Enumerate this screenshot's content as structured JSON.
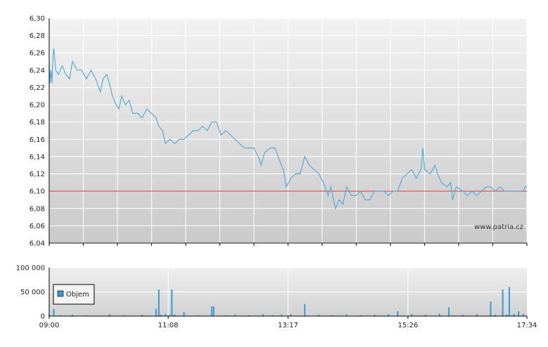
{
  "watermark": "www.patria.cz",
  "colors": {
    "price_line": "#5aaad8",
    "reference_line": "#e03030",
    "volume_bar": "#3a98d0",
    "grid": "#ffffff",
    "axis": "#000000"
  },
  "chart_data": [
    {
      "type": "line",
      "title": "",
      "xlabel": "",
      "ylabel": "",
      "y_ticks": [
        "6,04",
        "6,06",
        "6,08",
        "6,10",
        "6,12",
        "6,14",
        "6,16",
        "6,18",
        "6,20",
        "6,22",
        "6,24",
        "6,26",
        "6,28",
        "6,30"
      ],
      "ylim": [
        6.04,
        6.3
      ],
      "reference_value": 6.1,
      "xlim_minutes": [
        540,
        1054
      ],
      "grid": true,
      "series": [
        {
          "name": "",
          "points": [
            [
              "09:00",
              6.25
            ],
            [
              "09:01",
              6.225
            ],
            [
              "09:02",
              6.24
            ],
            [
              "09:03",
              6.225
            ],
            [
              "09:04",
              6.255
            ],
            [
              "09:05",
              6.265
            ],
            [
              "09:07",
              6.24
            ],
            [
              "09:10",
              6.235
            ],
            [
              "09:14",
              6.245
            ],
            [
              "09:18",
              6.235
            ],
            [
              "09:22",
              6.23
            ],
            [
              "09:25",
              6.25
            ],
            [
              "09:30",
              6.24
            ],
            [
              "09:35",
              6.24
            ],
            [
              "09:40",
              6.23
            ],
            [
              "09:45",
              6.24
            ],
            [
              "09:50",
              6.23
            ],
            [
              "09:55",
              6.215
            ],
            [
              "09:58",
              6.23
            ],
            [
              "10:02",
              6.235
            ],
            [
              "10:06",
              6.22
            ],
            [
              "10:08",
              6.21
            ],
            [
              "10:12",
              6.2
            ],
            [
              "10:15",
              6.195
            ],
            [
              "10:18",
              6.21
            ],
            [
              "10:22",
              6.2
            ],
            [
              "10:26",
              6.205
            ],
            [
              "10:30",
              6.19
            ],
            [
              "10:35",
              6.19
            ],
            [
              "10:40",
              6.185
            ],
            [
              "10:45",
              6.195
            ],
            [
              "10:50",
              6.19
            ],
            [
              "10:55",
              6.185
            ],
            [
              "10:58",
              6.175
            ],
            [
              "11:02",
              6.17
            ],
            [
              "11:05",
              6.155
            ],
            [
              "11:10",
              6.16
            ],
            [
              "11:15",
              6.155
            ],
            [
              "11:20",
              6.16
            ],
            [
              "11:25",
              6.16
            ],
            [
              "11:30",
              6.165
            ],
            [
              "11:35",
              6.17
            ],
            [
              "11:40",
              6.17
            ],
            [
              "11:45",
              6.175
            ],
            [
              "11:50",
              6.17
            ],
            [
              "11:55",
              6.18
            ],
            [
              "12:00",
              6.18
            ],
            [
              "12:05",
              6.165
            ],
            [
              "12:10",
              6.17
            ],
            [
              "12:15",
              6.165
            ],
            [
              "12:20",
              6.16
            ],
            [
              "12:25",
              6.155
            ],
            [
              "12:30",
              6.15
            ],
            [
              "12:35",
              6.15
            ],
            [
              "12:40",
              6.15
            ],
            [
              "12:45",
              6.14
            ],
            [
              "12:48",
              6.13
            ],
            [
              "12:52",
              6.145
            ],
            [
              "12:58",
              6.15
            ],
            [
              "13:03",
              6.15
            ],
            [
              "13:08",
              6.135
            ],
            [
              "13:12",
              6.125
            ],
            [
              "13:15",
              6.105
            ],
            [
              "13:20",
              6.115
            ],
            [
              "13:25",
              6.12
            ],
            [
              "13:30",
              6.12
            ],
            [
              "13:35",
              6.14
            ],
            [
              "13:40",
              6.13
            ],
            [
              "13:45",
              6.125
            ],
            [
              "13:50",
              6.12
            ],
            [
              "13:55",
              6.11
            ],
            [
              "14:00",
              6.095
            ],
            [
              "14:03",
              6.105
            ],
            [
              "14:08",
              6.08
            ],
            [
              "14:12",
              6.09
            ],
            [
              "14:16",
              6.085
            ],
            [
              "14:20",
              6.105
            ],
            [
              "14:25",
              6.095
            ],
            [
              "14:30",
              6.095
            ],
            [
              "14:35",
              6.1
            ],
            [
              "14:40",
              6.09
            ],
            [
              "14:45",
              6.09
            ],
            [
              "14:50",
              6.1
            ],
            [
              "14:55",
              6.1
            ],
            [
              "15:00",
              6.1
            ],
            [
              "15:05",
              6.095
            ],
            [
              "15:10",
              6.1
            ],
            [
              "15:15",
              6.1
            ],
            [
              "15:20",
              6.115
            ],
            [
              "15:25",
              6.12
            ],
            [
              "15:30",
              6.125
            ],
            [
              "15:35",
              6.115
            ],
            [
              "15:40",
              6.125
            ],
            [
              "15:42",
              6.15
            ],
            [
              "15:44",
              6.125
            ],
            [
              "15:50",
              6.12
            ],
            [
              "15:55",
              6.13
            ],
            [
              "15:58",
              6.12
            ],
            [
              "16:02",
              6.11
            ],
            [
              "16:08",
              6.105
            ],
            [
              "16:12",
              6.11
            ],
            [
              "16:14",
              6.09
            ],
            [
              "16:18",
              6.105
            ],
            [
              "16:25",
              6.1
            ],
            [
              "16:30",
              6.095
            ],
            [
              "16:35",
              6.1
            ],
            [
              "16:40",
              6.095
            ],
            [
              "16:45",
              6.1
            ],
            [
              "16:50",
              6.105
            ],
            [
              "16:55",
              6.105
            ],
            [
              "17:00",
              6.1
            ],
            [
              "17:05",
              6.105
            ],
            [
              "17:10",
              6.1
            ],
            [
              "17:15",
              6.1
            ],
            [
              "17:20",
              6.1
            ],
            [
              "17:25",
              6.1
            ],
            [
              "17:30",
              6.1
            ],
            [
              "17:32",
              6.105
            ],
            [
              "17:34",
              6.105
            ]
          ]
        }
      ]
    },
    {
      "type": "bar",
      "title": "",
      "ylabel": "",
      "y_ticks": [
        "0",
        "50 000",
        "100 000"
      ],
      "ylim": [
        0,
        100000
      ],
      "x_ticks": [
        "09:00",
        "11:08",
        "13:17",
        "15:26",
        "17:34"
      ],
      "legend": [
        "Objem"
      ],
      "legend_position": "left",
      "series": [
        {
          "name": "Objem",
          "points": [
            [
              "09:00",
              3000
            ],
            [
              "09:05",
              15000
            ],
            [
              "09:12",
              2000
            ],
            [
              "09:25",
              3000
            ],
            [
              "09:40",
              2000
            ],
            [
              "10:05",
              4000
            ],
            [
              "10:20",
              2000
            ],
            [
              "10:40",
              3000
            ],
            [
              "10:55",
              15000
            ],
            [
              "10:58",
              55000
            ],
            [
              "11:00",
              3000
            ],
            [
              "11:05",
              4000
            ],
            [
              "11:10",
              2000
            ],
            [
              "11:12",
              55000
            ],
            [
              "11:15",
              3000
            ],
            [
              "11:25",
              8000
            ],
            [
              "11:40",
              2000
            ],
            [
              "11:55",
              20000
            ],
            [
              "11:57",
              20000
            ],
            [
              "12:10",
              2000
            ],
            [
              "12:20",
              3000
            ],
            [
              "12:35",
              2000
            ],
            [
              "12:50",
              4000
            ],
            [
              "13:00",
              2000
            ],
            [
              "13:10",
              3000
            ],
            [
              "13:20",
              4000
            ],
            [
              "13:35",
              25000
            ],
            [
              "13:50",
              3000
            ],
            [
              "14:05",
              2000
            ],
            [
              "14:20",
              4000
            ],
            [
              "14:35",
              2000
            ],
            [
              "14:50",
              3000
            ],
            [
              "15:05",
              4000
            ],
            [
              "15:15",
              10000
            ],
            [
              "15:30",
              4000
            ],
            [
              "15:45",
              3000
            ],
            [
              "16:00",
              5000
            ],
            [
              "16:10",
              18000
            ],
            [
              "16:25",
              3000
            ],
            [
              "16:40",
              4000
            ],
            [
              "16:55",
              30000
            ],
            [
              "17:00",
              3000
            ],
            [
              "17:08",
              55000
            ],
            [
              "17:12",
              3000
            ],
            [
              "17:15",
              60000
            ],
            [
              "17:20",
              5000
            ],
            [
              "17:25",
              10000
            ],
            [
              "17:30",
              5000
            ]
          ]
        }
      ]
    }
  ]
}
